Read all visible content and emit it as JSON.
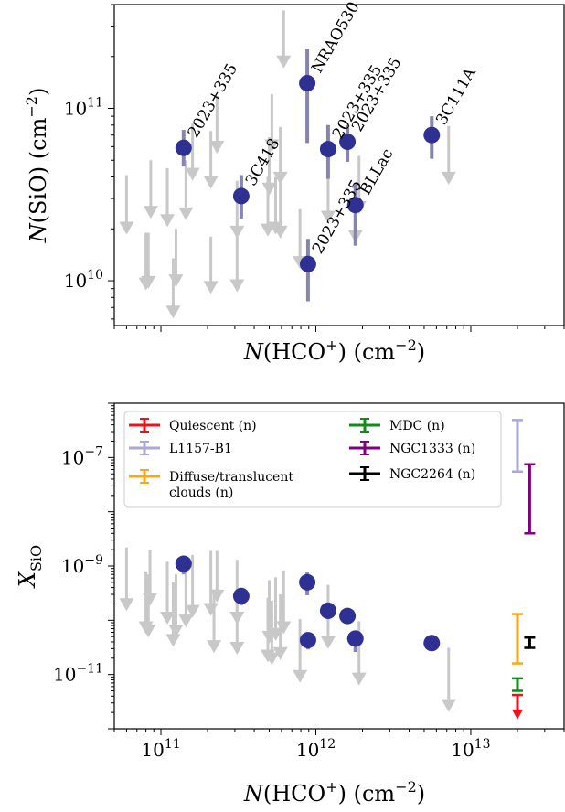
{
  "chart_data": [
    {
      "type": "scatter",
      "xlabel_parts": [
        "N",
        "(HCO",
        "+",
        ") (cm",
        "−2",
        ")"
      ],
      "ylabel_parts": [
        "N",
        "(SiO) (cm",
        "−2",
        ")"
      ],
      "xscale": "log",
      "yscale": "log",
      "xlim": [
        50000000000.0,
        40000000000000.0
      ],
      "ylim": [
        5500000000.0,
        400000000000.0
      ],
      "x_ticklabels": [],
      "y_ticklabels": [
        {
          "value": 10000000000.0,
          "mant": "10",
          "exp": "10"
        },
        {
          "value": 100000000000.0,
          "mant": "10",
          "exp": "11"
        }
      ],
      "detections": [
        {
          "x": 140000000000.0,
          "y": 59000000000.0,
          "lo": 46000000000.0,
          "hi": 75000000000.0,
          "label": "2023+335"
        },
        {
          "x": 330000000000.0,
          "y": 31000000000.0,
          "lo": 23000000000.0,
          "hi": 41000000000.0,
          "label": "3C418"
        },
        {
          "x": 880000000000.0,
          "y": 140000000000.0,
          "lo": 63000000000.0,
          "hi": 220000000000.0,
          "label": "NRAO530"
        },
        {
          "x": 890000000000.0,
          "y": 12500000000.0,
          "lo": 7600000000.0,
          "hi": 17500000000.0,
          "label": "2023+335"
        },
        {
          "x": 1200000000000.0,
          "y": 58000000000.0,
          "lo": 39000000000.0,
          "hi": 80000000000.0,
          "label": "2023+335"
        },
        {
          "x": 1600000000000.0,
          "y": 64000000000.0,
          "lo": 49000000000.0,
          "hi": 80000000000.0,
          "label": "2023+335"
        },
        {
          "x": 1800000000000.0,
          "y": 27500000000.0,
          "lo": 16000000000.0,
          "hi": 37000000000.0,
          "label": "BLLac"
        },
        {
          "x": 5600000000000.0,
          "y": 70000000000.0,
          "lo": 51000000000.0,
          "hi": 90000000000.0,
          "label": "3C111A"
        }
      ],
      "upper_limits": [
        {
          "x": 60000000000.0,
          "y": 19000000000.0,
          "top": 41000000000.0
        },
        {
          "x": 80000000000.0,
          "y": 9000000000.0,
          "top": 19000000000.0
        },
        {
          "x": 83000000000.0,
          "y": 9200000000.0,
          "top": 19000000000.0
        },
        {
          "x": 86000000000.0,
          "y": 23500000000.0,
          "top": 50000000000.0
        },
        {
          "x": 110000000000.0,
          "y": 21000000000.0,
          "top": 45000000000.0
        },
        {
          "x": 120000000000.0,
          "y": 6200000000.0,
          "top": 13500000000.0
        },
        {
          "x": 125000000000.0,
          "y": 9400000000.0,
          "top": 20000000000.0
        },
        {
          "x": 145000000000.0,
          "y": 23000000000.0,
          "top": 50000000000.0
        },
        {
          "x": 160000000000.0,
          "y": 39000000000.0,
          "top": 82000000000.0
        },
        {
          "x": 210000000000.0,
          "y": 8600000000.0,
          "top": 18000000000.0
        },
        {
          "x": 210000000000.0,
          "y": 35000000000.0,
          "top": 74000000000.0
        },
        {
          "x": 230000000000.0,
          "y": 56000000000.0,
          "top": 118000000000.0
        },
        {
          "x": 310000000000.0,
          "y": 8800000000.0,
          "top": 18500000000.0
        },
        {
          "x": 310000000000.0,
          "y": 18000000000.0,
          "top": 38000000000.0
        },
        {
          "x": 490000000000.0,
          "y": 18500000000.0,
          "top": 40000000000.0
        },
        {
          "x": 500000000000.0,
          "y": 32000000000.0,
          "top": 68000000000.0
        },
        {
          "x": 520000000000.0,
          "y": 57000000000.0,
          "top": 121000000000.0
        },
        {
          "x": 550000000000.0,
          "y": 19000000000.0,
          "top": 40000000000.0
        },
        {
          "x": 590000000000.0,
          "y": 18000000000.0,
          "top": 38000000000.0
        },
        {
          "x": 590000000000.0,
          "y": 37000000000.0,
          "top": 78000000000.0
        },
        {
          "x": 620000000000.0,
          "y": 175000000000.0,
          "top": 370000000000.0
        },
        {
          "x": 790000000000.0,
          "y": 12000000000.0,
          "top": 26000000000.0
        },
        {
          "x": 1200000000000.0,
          "y": 22000000000.0,
          "top": 46000000000.0
        },
        {
          "x": 1800000000000.0,
          "y": 17000000000.0,
          "top": 36000000000.0
        },
        {
          "x": 1900000000000.0,
          "y": 25000000000.0,
          "top": 53000000000.0
        },
        {
          "x": 7200000000000.0,
          "y": 37000000000.0,
          "top": 79000000000.0
        }
      ]
    },
    {
      "type": "scatter",
      "xlabel_parts": [
        "N",
        "(HCO",
        "+",
        ") (cm",
        "−2",
        ")"
      ],
      "ylabel_parts": [
        "X",
        "SiO"
      ],
      "xscale": "log",
      "yscale": "log",
      "xlim": [
        50000000000.0,
        40000000000000.0
      ],
      "ylim": [
        1e-12,
        1e-06
      ],
      "x_ticklabels": [
        {
          "value": 100000000000.0,
          "mant": "10",
          "exp": "11"
        },
        {
          "value": 1000000000000.0,
          "mant": "10",
          "exp": "12"
        },
        {
          "value": 10000000000000.0,
          "mant": "10",
          "exp": "13"
        }
      ],
      "y_ticklabels": [
        {
          "value": 1e-11,
          "mant": "10",
          "exp": "−11"
        },
        {
          "value": 1e-09,
          "mant": "10",
          "exp": "−9"
        },
        {
          "value": 1e-07,
          "mant": "10",
          "exp": "−7"
        }
      ],
      "detections": [
        {
          "x": 140000000000.0,
          "y": 1.1e-09,
          "lo": 7e-10,
          "hi": 1.45e-09
        },
        {
          "x": 330000000000.0,
          "y": 2.8e-10,
          "lo": 1.9e-10,
          "hi": 3.8e-10
        },
        {
          "x": 880000000000.0,
          "y": 5e-10,
          "lo": 2.9e-10,
          "hi": 7.6e-10
        },
        {
          "x": 890000000000.0,
          "y": 4.3e-11,
          "lo": 2.9e-11,
          "hi": 5.8e-11
        },
        {
          "x": 1200000000000.0,
          "y": 1.5e-10,
          "lo": 1.05e-10,
          "hi": 2e-10
        },
        {
          "x": 1600000000000.0,
          "y": 1.2e-10,
          "lo": 1.05e-10,
          "hi": 1.35e-10
        },
        {
          "x": 1800000000000.0,
          "y": 4.6e-11,
          "lo": 2.6e-11,
          "hi": 6.5e-11
        },
        {
          "x": 5600000000000.0,
          "y": 3.8e-11,
          "lo": 2.9e-11,
          "hi": 5e-11
        }
      ],
      "upper_limits": [
        {
          "x": 60000000000.0,
          "y": 1.6e-10,
          "top": 2.2e-09
        },
        {
          "x": 80000000000.0,
          "y": 6e-11,
          "top": 8e-10
        },
        {
          "x": 83000000000.0,
          "y": 5.2e-11,
          "top": 7e-10
        },
        {
          "x": 85000000000.0,
          "y": 2e-10,
          "top": 2e-09
        },
        {
          "x": 110000000000.0,
          "y": 9e-11,
          "top": 1.2e-09
        },
        {
          "x": 120000000000.0,
          "y": 3.5e-11,
          "top": 5e-10
        },
        {
          "x": 125000000000.0,
          "y": 5.2e-11,
          "top": 7e-10
        },
        {
          "x": 145000000000.0,
          "y": 8e-11,
          "top": 1.1e-09
        },
        {
          "x": 160000000000.0,
          "y": 1.2e-10,
          "top": 1.6e-09
        },
        {
          "x": 210000000000.0,
          "y": 1.3e-10,
          "top": 1.9e-09
        },
        {
          "x": 220000000000.0,
          "y": 2.7e-11,
          "top": 3.7e-10
        },
        {
          "x": 230000000000.0,
          "y": 2.3e-10,
          "top": 1.9e-09
        },
        {
          "x": 310000000000.0,
          "y": 2.5e-11,
          "top": 3.6e-10
        },
        {
          "x": 310000000000.0,
          "y": 9e-11,
          "top": 1.3e-09
        },
        {
          "x": 490000000000.0,
          "y": 1.8e-11,
          "top": 2.6e-10
        },
        {
          "x": 500000000000.0,
          "y": 4e-11,
          "top": 5.5e-10
        },
        {
          "x": 520000000000.0,
          "y": 1.6e-11,
          "top": 2.3e-10
        },
        {
          "x": 550000000000.0,
          "y": 4.5e-11,
          "top": 6.2e-10
        },
        {
          "x": 590000000000.0,
          "y": 2e-11,
          "top": 3e-10
        },
        {
          "x": 620000000000.0,
          "y": 6e-11,
          "top": 8.3e-10
        },
        {
          "x": 790000000000.0,
          "y": 7.6e-12,
          "top": 1.05e-10
        },
        {
          "x": 1200000000000.0,
          "y": 3.2e-11,
          "top": 4.5e-10
        },
        {
          "x": 1900000000000.0,
          "y": 6.8e-12,
          "top": 9.6e-11
        },
        {
          "x": 7200000000000.0,
          "y": 2.2e-12,
          "top": 3.1e-11
        }
      ],
      "reference_ranges": [
        {
          "name": "Quiescent (n)",
          "color": "#e8141c",
          "x": 20000000000000.0,
          "lo": null,
          "hi": 4.2e-12,
          "arrow_to": 1.6e-12
        },
        {
          "name": "L1157-B1",
          "color": "#a9a9d2",
          "x": 20000000000000.0,
          "lo": 5.5e-08,
          "hi": 4.9e-07
        },
        {
          "name": "Diffuse/translucent clouds (n)",
          "color": "#f5a623",
          "x": 20000000000000.0,
          "lo": 1.6e-11,
          "hi": 1.3e-10
        },
        {
          "name": "MDC (n)",
          "color": "#138a1a",
          "x": 20000000000000.0,
          "lo": 5e-12,
          "hi": 8.5e-12
        },
        {
          "name": "NGC1333 (n)",
          "color": "#800080",
          "x": 24000000000000.0,
          "lo": 4e-09,
          "hi": 7.5e-08
        },
        {
          "name": "NGC2264 (n)",
          "color": "#000000",
          "x": 24000000000000.0,
          "lo": 3.1e-11,
          "hi": 4.8e-11
        }
      ],
      "legend": {
        "placement": "upper",
        "entries": [
          {
            "label": "Quiescent (n)",
            "color": "#e8141c"
          },
          {
            "label": "L1157-B1",
            "color": "#a9a9d2"
          },
          {
            "label": "Diffuse/translucent",
            "label2": "clouds (n)",
            "color": "#f5a623"
          },
          {
            "label": "MDC (n)",
            "color": "#138a1a"
          },
          {
            "label": "NGC1333 (n)",
            "color": "#800080"
          },
          {
            "label": "NGC2264 (n)",
            "color": "#000000"
          }
        ]
      }
    }
  ],
  "colors": {
    "detection": "#2e3192",
    "detection_bar": "#8585b0",
    "upper_limit": "#c8c8c8"
  }
}
